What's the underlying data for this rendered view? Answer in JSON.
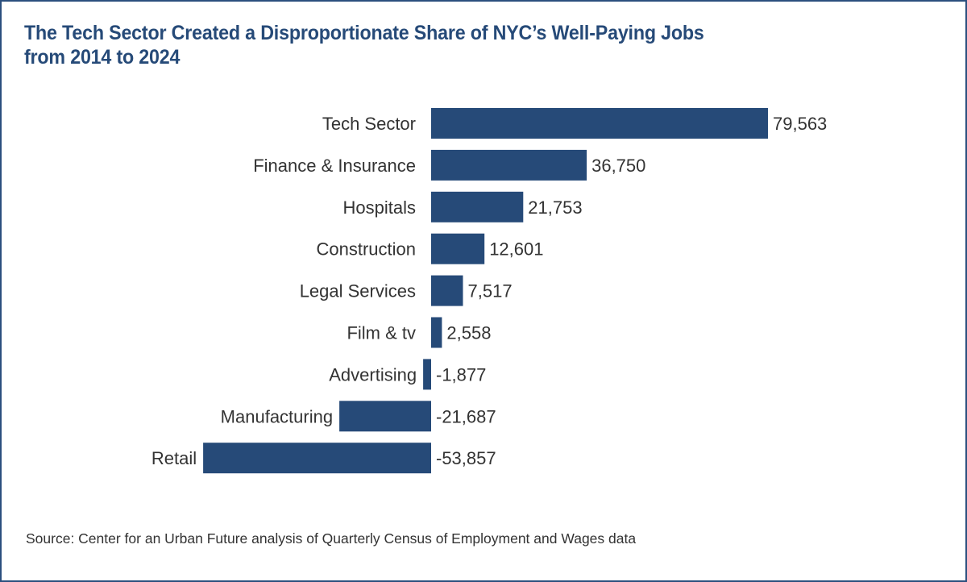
{
  "chart_data": {
    "type": "bar",
    "orientation": "horizontal",
    "title": "The Tech Sector Created a Disproportionate Share of NYC’s Well-Paying Jobs from 2014 to 2024",
    "title_lines": [
      "The Tech Sector Created a Disproportionate Share of NYC’s Well-Paying Jobs",
      "from 2014 to 2024"
    ],
    "categories": [
      "Tech Sector",
      "Finance & Insurance",
      "Hospitals",
      "Construction",
      "Legal Services",
      "Film & tv",
      "Advertising",
      "Manufacturing",
      "Retail"
    ],
    "values": [
      79563,
      36750,
      21753,
      12601,
      7517,
      2558,
      -1877,
      -21687,
      -53857
    ],
    "value_labels": [
      "79,563",
      "36,750",
      "21,753",
      "12,601",
      "7,517",
      "2,558",
      "-1,877",
      "-21,687",
      "-53,857"
    ],
    "xlabel": "",
    "ylabel": "",
    "grid": false,
    "legend": "none",
    "bar_color": "#264a78",
    "source": "Source: Center for an Urban Future analysis of Quarterly Census of Employment and Wages data"
  }
}
